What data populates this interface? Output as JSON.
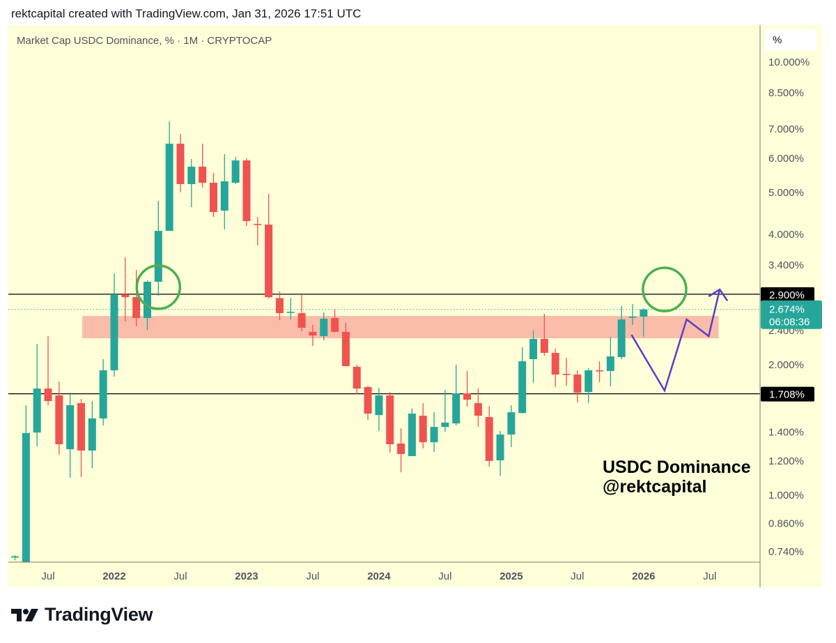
{
  "header": {
    "attribution": "rektcapital created with TradingView.com, Jan 31, 2026 17:51 UTC"
  },
  "legend": {
    "title": "Market Cap USDC Dominance, % · 1M · CRYPTOCAP"
  },
  "scale": {
    "unit_label": "%"
  },
  "watermark": {
    "line1": "USDC Dominance",
    "line2": "@rektcapital"
  },
  "branding": {
    "logo_text": "TradingView"
  },
  "colors": {
    "up": "#26a69a",
    "down": "#ef5350",
    "zone": "#f9bca9",
    "path": "#5b3cc4",
    "circle": "#4caf50",
    "background": "#fefed9"
  },
  "chart_data": {
    "type": "candlestick",
    "title": "Market Cap USDC Dominance, % · 1M · CRYPTOCAP",
    "yscale": "log",
    "ylim": [
      0.7,
      10.6
    ],
    "x_index_note": "t = months since Jan 2022",
    "y_ticks": [
      {
        "label": "10.000%",
        "value": 10
      },
      {
        "label": "8.500%",
        "value": 8.5
      },
      {
        "label": "7.000%",
        "value": 7
      },
      {
        "label": "6.000%",
        "value": 6
      },
      {
        "label": "5.000%",
        "value": 5
      },
      {
        "label": "4.000%",
        "value": 4
      },
      {
        "label": "3.400%",
        "value": 3.4
      },
      {
        "label": "2.400%",
        "value": 2.4
      },
      {
        "label": "2.000%",
        "value": 2
      },
      {
        "label": "1.400%",
        "value": 1.4
      },
      {
        "label": "1.200%",
        "value": 1.2
      },
      {
        "label": "1.000%",
        "value": 1
      },
      {
        "label": "0.860%",
        "value": 0.86
      },
      {
        "label": "0.740%",
        "value": 0.74
      }
    ],
    "x_ticks": [
      {
        "label": "Jul",
        "t": -6,
        "bold": false
      },
      {
        "label": "2022",
        "t": 0,
        "bold": true
      },
      {
        "label": "Jul",
        "t": 6,
        "bold": false
      },
      {
        "label": "2023",
        "t": 12,
        "bold": true
      },
      {
        "label": "Jul",
        "t": 18,
        "bold": false
      },
      {
        "label": "2024",
        "t": 24,
        "bold": true
      },
      {
        "label": "Jul",
        "t": 30,
        "bold": false
      },
      {
        "label": "2025",
        "t": 36,
        "bold": true
      },
      {
        "label": "Jul",
        "t": 42,
        "bold": false
      },
      {
        "label": "2026",
        "t": 48,
        "bold": true
      },
      {
        "label": "Jul",
        "t": 54,
        "bold": false
      }
    ],
    "candles_columns": [
      "month",
      "t",
      "open",
      "high",
      "low",
      "close"
    ],
    "candles": [
      [
        "2021-04",
        -9,
        0.715,
        0.724,
        0.705,
        0.72
      ],
      [
        "2021-05",
        -8,
        0.69,
        1.607,
        0.69,
        1.386
      ],
      [
        "2021-06",
        -7,
        1.39,
        2.227,
        1.291,
        1.756
      ],
      [
        "2021-07",
        -6,
        1.756,
        2.32,
        1.607,
        1.643
      ],
      [
        "2021-08",
        -5,
        1.693,
        1.823,
        1.235,
        1.306
      ],
      [
        "2021-09",
        -4,
        1.272,
        1.718,
        1.093,
        1.607
      ],
      [
        "2021-10",
        -3,
        1.625,
        1.662,
        1.097,
        1.263
      ],
      [
        "2021-11",
        -2,
        1.263,
        1.643,
        1.15,
        1.498
      ],
      [
        "2021-12",
        -1,
        1.498,
        2.053,
        1.443,
        1.935
      ],
      [
        "2022-01",
        0,
        1.935,
        3.239,
        1.871,
        2.898
      ],
      [
        "2022-02",
        1,
        2.898,
        3.527,
        2.508,
        2.855
      ],
      [
        "2022-03",
        2,
        2.855,
        3.3,
        2.444,
        2.555
      ],
      [
        "2022-04",
        3,
        2.555,
        3.121,
        2.399,
        3.098
      ],
      [
        "2022-05",
        4,
        3.098,
        4.763,
        2.876,
        4.061
      ],
      [
        "2022-06",
        5,
        4.061,
        7.269,
        4.061,
        6.455
      ],
      [
        "2022-07",
        6,
        6.455,
        6.8,
        4.982,
        5.207
      ],
      [
        "2022-08",
        7,
        5.207,
        5.95,
        4.606,
        5.712
      ],
      [
        "2022-09",
        8,
        5.712,
        6.455,
        5.111,
        5.245
      ],
      [
        "2022-10",
        9,
        5.245,
        5.525,
        4.374,
        4.489
      ],
      [
        "2022-11",
        10,
        4.523,
        6.106,
        4.091,
        5.284
      ],
      [
        "2022-12",
        11,
        5.245,
        6.017,
        5.207,
        5.906
      ],
      [
        "2023-01",
        12,
        5.906,
        5.972,
        4.168,
        4.277
      ],
      [
        "2023-02",
        13,
        4.214,
        4.374,
        3.757,
        4.199
      ],
      [
        "2023-03",
        14,
        4.199,
        4.942,
        2.834,
        2.855
      ],
      [
        "2023-04",
        15,
        2.84,
        2.941,
        2.526,
        2.622
      ],
      [
        "2023-05",
        16,
        2.631,
        2.844,
        2.536,
        2.641
      ],
      [
        "2023-06",
        17,
        2.622,
        2.887,
        2.382,
        2.426
      ],
      [
        "2023-07",
        18,
        2.374,
        2.462,
        2.203,
        2.329
      ],
      [
        "2023-08",
        19,
        2.32,
        2.631,
        2.269,
        2.546
      ],
      [
        "2023-09",
        20,
        2.555,
        2.681,
        2.365,
        2.374
      ],
      [
        "2023-10",
        21,
        2.374,
        2.489,
        1.978,
        1.978
      ],
      [
        "2023-11",
        22,
        1.971,
        1.993,
        1.706,
        1.756
      ],
      [
        "2023-12",
        23,
        1.77,
        1.783,
        1.487,
        1.537
      ],
      [
        "2024-01",
        24,
        1.525,
        1.763,
        1.401,
        1.693
      ],
      [
        "2024-02",
        25,
        1.693,
        1.724,
        1.249,
        1.306
      ],
      [
        "2024-03",
        26,
        1.311,
        1.421,
        1.125,
        1.24
      ],
      [
        "2024-04",
        27,
        1.226,
        1.579,
        1.226,
        1.537
      ],
      [
        "2024-05",
        28,
        1.52,
        1.625,
        1.277,
        1.32
      ],
      [
        "2024-06",
        29,
        1.32,
        1.548,
        1.253,
        1.432
      ],
      [
        "2024-07",
        30,
        1.432,
        1.743,
        1.396,
        1.465
      ],
      [
        "2024-08",
        31,
        1.459,
        1.993,
        1.443,
        1.712
      ],
      [
        "2024-09",
        32,
        1.712,
        1.928,
        1.595,
        1.655
      ],
      [
        "2024-10",
        33,
        1.625,
        1.756,
        1.432,
        1.52
      ],
      [
        "2024-11",
        34,
        1.509,
        1.601,
        1.159,
        1.195
      ],
      [
        "2024-12",
        35,
        1.199,
        1.401,
        1.105,
        1.375
      ],
      [
        "2025-01",
        36,
        1.375,
        1.607,
        1.287,
        1.548
      ],
      [
        "2025-02",
        37,
        1.542,
        2.186,
        1.537,
        2.03
      ],
      [
        "2025-03",
        38,
        2.053,
        2.392,
        1.81,
        2.286
      ],
      [
        "2025-04",
        39,
        2.286,
        2.612,
        2.091,
        2.123
      ],
      [
        "2025-05",
        40,
        2.123,
        2.17,
        1.77,
        1.892
      ],
      [
        "2025-06",
        41,
        1.899,
        2.068,
        1.783,
        1.892
      ],
      [
        "2025-07",
        42,
        1.892,
        1.935,
        1.631,
        1.718
      ],
      [
        "2025-08",
        43,
        1.724,
        1.957,
        1.625,
        1.935
      ],
      [
        "2025-09",
        44,
        1.935,
        2.03,
        1.816,
        1.928
      ],
      [
        "2025-10",
        45,
        1.928,
        2.311,
        1.776,
        2.083
      ],
      [
        "2025-11",
        46,
        2.076,
        2.721,
        2.053,
        2.536
      ],
      [
        "2025-12",
        47,
        2.565,
        2.752,
        2.462,
        2.574
      ],
      [
        "2026-01",
        48,
        2.574,
        2.691,
        2.311,
        2.674
      ]
    ],
    "horizontal_levels": [
      {
        "label": "2.900%",
        "value": 2.9
      },
      {
        "label": "1.708%",
        "value": 1.708
      }
    ],
    "last_price": {
      "label": "2.674%",
      "value": 2.674,
      "countdown": "06:08:36"
    },
    "zone": {
      "t_start": -2.9,
      "t_end": 54.8,
      "low": 2.294,
      "high": 2.583
    },
    "circles": [
      {
        "t": 4.0,
        "price": 3.01
      },
      {
        "t": 49.9,
        "price": 2.974
      }
    ],
    "projection_path": [
      [
        46.9,
        2.337
      ],
      [
        49.9,
        1.737
      ],
      [
        51.9,
        2.536
      ],
      [
        53.9,
        2.32
      ],
      [
        54.9,
        2.974
      ]
    ],
    "projection_arrowhead": [
      [
        53.9,
        2.866
      ],
      [
        54.9,
        2.974
      ],
      [
        55.6,
        2.8
      ]
    ]
  }
}
